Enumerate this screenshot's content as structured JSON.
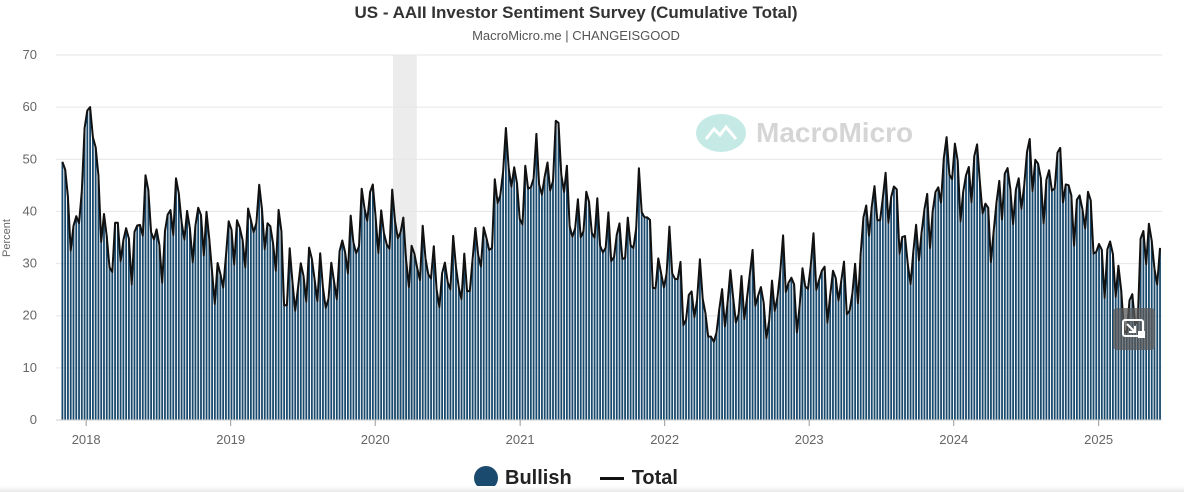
{
  "chart_data": {
    "type": "bar",
    "title": "US - AAII Investor Sentiment Survey (Cumulative Total)",
    "subtitle": "MacroMicro.me | CHANGEISGOOD",
    "ylabel": "Percent",
    "ylim": [
      0,
      70
    ],
    "yticks": [
      0,
      10,
      20,
      30,
      40,
      50,
      60,
      70
    ],
    "xlim": [
      "2017-11-01",
      "2025-06-10"
    ],
    "xticks": [
      {
        "date": "2018-01-01",
        "label": "2018"
      },
      {
        "date": "2019-01-01",
        "label": "2019"
      },
      {
        "date": "2020-01-01",
        "label": "2020"
      },
      {
        "date": "2021-01-01",
        "label": "2021"
      },
      {
        "date": "2022-01-01",
        "label": "2022"
      },
      {
        "date": "2023-01-01",
        "label": "2023"
      },
      {
        "date": "2024-01-01",
        "label": "2024"
      },
      {
        "date": "2025-01-01",
        "label": "2025"
      }
    ],
    "grid": true,
    "legend_position": "bottom-center",
    "recession_band": {
      "start": "2020-02-15",
      "end": "2020-04-15"
    },
    "monthly_levels": [
      {
        "date": "2017-11-01",
        "value": 45
      },
      {
        "date": "2017-12-01",
        "value": 35
      },
      {
        "date": "2018-01-01",
        "value": 56
      },
      {
        "date": "2018-02-01",
        "value": 45
      },
      {
        "date": "2018-03-01",
        "value": 33
      },
      {
        "date": "2018-04-01",
        "value": 32
      },
      {
        "date": "2018-05-01",
        "value": 36
      },
      {
        "date": "2018-06-01",
        "value": 40
      },
      {
        "date": "2018-07-01",
        "value": 34
      },
      {
        "date": "2018-08-01",
        "value": 38
      },
      {
        "date": "2018-09-01",
        "value": 40
      },
      {
        "date": "2018-10-01",
        "value": 37
      },
      {
        "date": "2018-11-01",
        "value": 34
      },
      {
        "date": "2018-12-01",
        "value": 28
      },
      {
        "date": "2019-01-01",
        "value": 32
      },
      {
        "date": "2019-02-01",
        "value": 38
      },
      {
        "date": "2019-03-01",
        "value": 37
      },
      {
        "date": "2019-04-01",
        "value": 38
      },
      {
        "date": "2019-05-01",
        "value": 36
      },
      {
        "date": "2019-06-01",
        "value": 25
      },
      {
        "date": "2019-07-01",
        "value": 30
      },
      {
        "date": "2019-08-01",
        "value": 25
      },
      {
        "date": "2019-09-01",
        "value": 28
      },
      {
        "date": "2019-10-01",
        "value": 26
      },
      {
        "date": "2019-11-01",
        "value": 36
      },
      {
        "date": "2019-12-01",
        "value": 39
      },
      {
        "date": "2020-01-01",
        "value": 40
      },
      {
        "date": "2020-02-01",
        "value": 37
      },
      {
        "date": "2020-03-01",
        "value": 35
      },
      {
        "date": "2020-04-01",
        "value": 33
      },
      {
        "date": "2020-05-01",
        "value": 28
      },
      {
        "date": "2020-06-01",
        "value": 30
      },
      {
        "date": "2020-07-01",
        "value": 26
      },
      {
        "date": "2020-08-01",
        "value": 28
      },
      {
        "date": "2020-09-01",
        "value": 30
      },
      {
        "date": "2020-10-01",
        "value": 31
      },
      {
        "date": "2020-11-01",
        "value": 44
      },
      {
        "date": "2020-12-01",
        "value": 48
      },
      {
        "date": "2021-01-01",
        "value": 44
      },
      {
        "date": "2021-02-01",
        "value": 45
      },
      {
        "date": "2021-03-01",
        "value": 47
      },
      {
        "date": "2021-04-01",
        "value": 52
      },
      {
        "date": "2021-05-01",
        "value": 40
      },
      {
        "date": "2021-06-01",
        "value": 40
      },
      {
        "date": "2021-07-01",
        "value": 36
      },
      {
        "date": "2021-08-01",
        "value": 38
      },
      {
        "date": "2021-09-01",
        "value": 30
      },
      {
        "date": "2021-10-01",
        "value": 36
      },
      {
        "date": "2021-11-01",
        "value": 42
      },
      {
        "date": "2021-12-01",
        "value": 30
      },
      {
        "date": "2022-01-01",
        "value": 30
      },
      {
        "date": "2022-02-01",
        "value": 26
      },
      {
        "date": "2022-03-01",
        "value": 24
      },
      {
        "date": "2022-04-01",
        "value": 22
      },
      {
        "date": "2022-05-01",
        "value": 22
      },
      {
        "date": "2022-06-01",
        "value": 20
      },
      {
        "date": "2022-07-01",
        "value": 23
      },
      {
        "date": "2022-08-01",
        "value": 27
      },
      {
        "date": "2022-09-01",
        "value": 21
      },
      {
        "date": "2022-10-01",
        "value": 24
      },
      {
        "date": "2022-11-01",
        "value": 27
      },
      {
        "date": "2022-12-01",
        "value": 25
      },
      {
        "date": "2023-01-01",
        "value": 26
      },
      {
        "date": "2023-02-01",
        "value": 30
      },
      {
        "date": "2023-03-01",
        "value": 24
      },
      {
        "date": "2023-04-01",
        "value": 24
      },
      {
        "date": "2023-05-01",
        "value": 28
      },
      {
        "date": "2023-06-01",
        "value": 38
      },
      {
        "date": "2023-07-01",
        "value": 45
      },
      {
        "date": "2023-08-01",
        "value": 40
      },
      {
        "date": "2023-09-01",
        "value": 34
      },
      {
        "date": "2023-10-01",
        "value": 31
      },
      {
        "date": "2023-11-01",
        "value": 40
      },
      {
        "date": "2023-12-01",
        "value": 48
      },
      {
        "date": "2024-01-01",
        "value": 46
      },
      {
        "date": "2024-02-01",
        "value": 47
      },
      {
        "date": "2024-03-01",
        "value": 46
      },
      {
        "date": "2024-04-01",
        "value": 38
      },
      {
        "date": "2024-05-01",
        "value": 42
      },
      {
        "date": "2024-06-01",
        "value": 44
      },
      {
        "date": "2024-07-01",
        "value": 48
      },
      {
        "date": "2024-08-01",
        "value": 46
      },
      {
        "date": "2024-09-01",
        "value": 47
      },
      {
        "date": "2024-10-01",
        "value": 45
      },
      {
        "date": "2024-11-01",
        "value": 43
      },
      {
        "date": "2024-12-01",
        "value": 38
      },
      {
        "date": "2025-01-01",
        "value": 34
      },
      {
        "date": "2025-02-01",
        "value": 30
      },
      {
        "date": "2025-03-01",
        "value": 21
      },
      {
        "date": "2025-04-01",
        "value": 24
      },
      {
        "date": "2025-05-01",
        "value": 34
      },
      {
        "date": "2025-06-01",
        "value": 33
      }
    ],
    "annotated_points": [
      {
        "date": "2018-01-10",
        "value": 60
      },
      {
        "date": "2019-05-20",
        "value": 22
      },
      {
        "date": "2020-11-25",
        "value": 56
      },
      {
        "date": "2021-04-08",
        "value": 57
      },
      {
        "date": "2022-04-25",
        "value": 16
      },
      {
        "date": "2024-01-05",
        "value": 53
      },
      {
        "date": "2025-04-10",
        "value": 19
      },
      {
        "date": "2025-06-05",
        "value": 33
      }
    ],
    "series": [
      {
        "name": "Bullish",
        "kind": "bars",
        "color": "#1a4a6e"
      },
      {
        "name": "Total",
        "kind": "line",
        "color": "#111111"
      }
    ]
  },
  "watermark": {
    "text": "MacroMicro"
  },
  "controls": {
    "collapse_icon": "collapse-icon"
  },
  "colors": {
    "band": "#ececec",
    "grid": "#e6e6e6",
    "axis_text": "#666666"
  }
}
